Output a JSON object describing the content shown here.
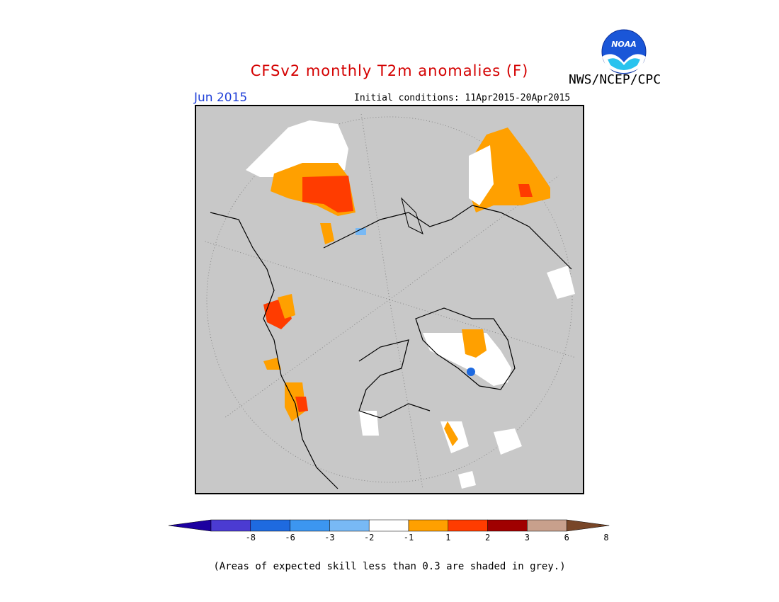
{
  "title": "CFSv2 monthly T2m anomalies (F)",
  "agency": "NWS/NCEP/CPC",
  "logo_text": "NOAA",
  "valid_month": "Jun 2015",
  "initial_conditions": "Initial conditions: 11Apr2015-20Apr2015",
  "map": {
    "projection": "north polar stereographic",
    "background_color": "#c8c8c8",
    "skill_mask": "grey"
  },
  "colorbar": {
    "labels": [
      "-8",
      "-6",
      "-3",
      "-2",
      "-1",
      "1",
      "2",
      "3",
      "6",
      "8"
    ],
    "colors": [
      "#1c00a0",
      "#4b3bd2",
      "#1e6ae0",
      "#3c96f0",
      "#78b9f5",
      "#ffffff",
      "#ffa000",
      "#ff3c00",
      "#a00000",
      "#c8a08c",
      "#784628"
    ]
  },
  "note": "(Areas of expected skill less than 0.3 are shaded in grey.)"
}
